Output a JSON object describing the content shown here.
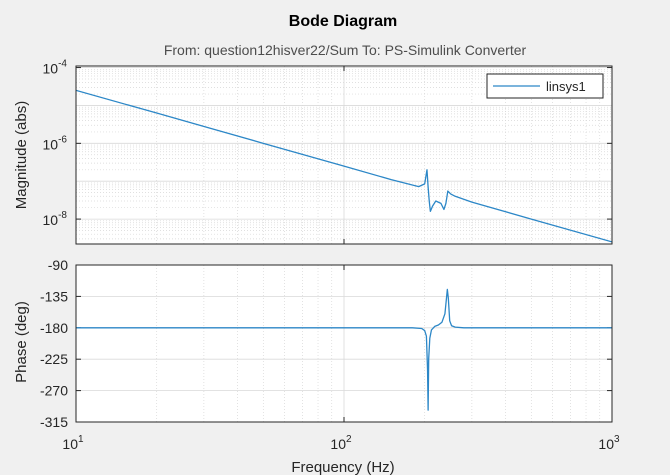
{
  "chart_data": {
    "type": "line",
    "title": "Bode Diagram",
    "subtitle": "From: question12hisver22/Sum  To: PS-Simulink Converter",
    "xlabel": "Frequency  (Hz)",
    "x_scale": "log",
    "xlim": [
      10,
      1000
    ],
    "x_ticks": [
      {
        "base": "10",
        "exp": "1"
      },
      {
        "base": "10",
        "exp": "2"
      },
      {
        "base": "10",
        "exp": "3"
      }
    ],
    "legend": {
      "entries": [
        "linsys1"
      ],
      "placement": "top-right"
    },
    "series_color": "#2c87c7",
    "grid": true,
    "magnitude": {
      "ylabel": "Magnitude (abs)",
      "y_scale": "log",
      "ylim": [
        2.2e-09,
        0.00011
      ],
      "y_ticks": [
        {
          "base": "10",
          "exp": "-4"
        },
        {
          "base": "10",
          "exp": "-6"
        },
        {
          "base": "10",
          "exp": "-8"
        }
      ],
      "series": [
        {
          "name": "linsys1",
          "x": [
            10,
            20,
            50,
            100,
            150,
            190,
            200,
            204,
            206,
            208,
            210,
            214,
            220,
            230,
            236,
            240,
            244,
            250,
            260,
            300,
            500,
            1000
          ],
          "y": [
            2.5e-05,
            6.3e-06,
            1e-06,
            2.5e-07,
            1.1e-07,
            7.2e-08,
            8.5e-08,
            2e-07,
            7e-08,
            3e-08,
            1.6e-08,
            2.2e-08,
            3e-08,
            2.6e-08,
            1.8e-08,
            2.6e-08,
            5.5e-08,
            4.6e-08,
            4e-08,
            2.8e-08,
            1e-08,
            2.5e-09
          ]
        }
      ]
    },
    "phase": {
      "ylabel": "Phase (deg)",
      "y_scale": "linear",
      "ylim": [
        -315,
        -90
      ],
      "y_ticks": [
        -90,
        -135,
        -180,
        -225,
        -270,
        -315
      ],
      "series": [
        {
          "name": "linsys1",
          "x": [
            10,
            100,
            180,
            195,
            200,
            203,
            205,
            206,
            207,
            209,
            212,
            218,
            225,
            232,
            238,
            243,
            245,
            248,
            252,
            260,
            280,
            1000
          ],
          "y": [
            -180,
            -180,
            -180,
            -181,
            -184,
            -192,
            -240,
            -298,
            -225,
            -195,
            -183,
            -178,
            -176,
            -172,
            -160,
            -125,
            -137,
            -170,
            -177,
            -179,
            -180,
            -180
          ]
        }
      ]
    }
  }
}
